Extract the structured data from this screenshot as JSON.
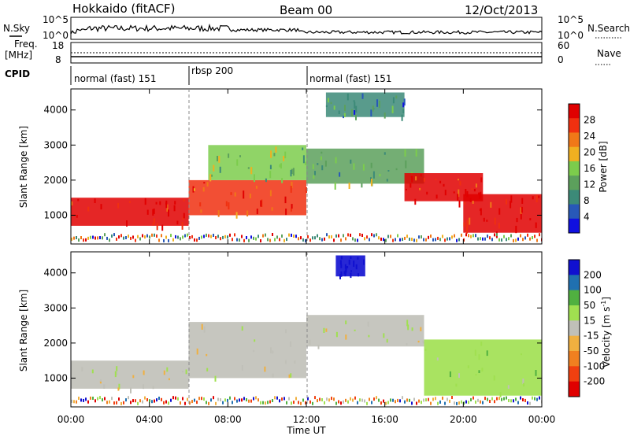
{
  "header": {
    "station": "Hokkaido (fitACF)",
    "beam": "Beam 00",
    "date": "12/Oct/2013"
  },
  "panels": {
    "nsky_label": "N.Sky",
    "nsky_ticks": [
      "10^5",
      "10^0"
    ],
    "nsky_right_ticks": [
      "10^5",
      "10^0"
    ],
    "nsearch_label": "N.Search",
    "freq_label_line1": "Freq.",
    "freq_label_line2": "[MHz]",
    "freq_ticks": [
      "18",
      "8"
    ],
    "nave_ticks": [
      "60",
      "0"
    ],
    "nave_label": "Nave",
    "cpid_label": "CPID"
  },
  "cpid_segments": [
    {
      "name": "normal (fast) 151",
      "start_hour": 0
    },
    {
      "name": "rbsp 200",
      "start_hour": 6
    },
    {
      "name": "normal (fast) 151",
      "start_hour": 12
    }
  ],
  "x_axis": {
    "label": "Time UT",
    "ticks": [
      "00:00",
      "04:00",
      "08:00",
      "12:00",
      "16:00",
      "20:00",
      "00:00"
    ]
  },
  "power_panel": {
    "ylabel": "Slant Range [km]",
    "yticks": [
      "4000",
      "3000",
      "2000",
      "1000"
    ],
    "colorbar_label": "Power [dB]",
    "colorbar_ticks": [
      "28",
      "24",
      "20",
      "16",
      "12",
      "8",
      "4"
    ]
  },
  "velocity_panel": {
    "ylabel": "Slant Range [km]",
    "yticks": [
      "4000",
      "3000",
      "2000",
      "1000"
    ],
    "colorbar_label": "Velocity [m s",
    "colorbar_label_sup": "-1",
    "colorbar_label_end": "]",
    "colorbar_ticks": [
      "200",
      "100",
      "50",
      "15",
      "-15",
      "-50",
      "-100",
      "-200"
    ]
  },
  "chart_data": [
    {
      "type": "heatmap",
      "title": "Power",
      "xlabel": "Time UT",
      "ylabel": "Slant Range [km]",
      "xlim": [
        0,
        24
      ],
      "ylim": [
        180,
        4600
      ],
      "colorbar": {
        "label": "Power [dB]",
        "range": [
          0,
          32
        ],
        "ticks": [
          4,
          8,
          12,
          16,
          20,
          24,
          28
        ]
      },
      "regions": [
        {
          "t0": 0,
          "t1": 6,
          "r0": 700,
          "r1": 1500,
          "value": 30
        },
        {
          "t0": 6,
          "t1": 12,
          "r0": 1000,
          "r1": 2000,
          "value": 26
        },
        {
          "t0": 7,
          "t1": 12,
          "r0": 2000,
          "r1": 3000,
          "value": 15
        },
        {
          "t0": 12,
          "t1": 18,
          "r0": 1900,
          "r1": 2900,
          "value": 13
        },
        {
          "t0": 17,
          "t1": 21,
          "r0": 1400,
          "r1": 2200,
          "value": 30
        },
        {
          "t0": 20,
          "t1": 24,
          "r0": 500,
          "r1": 1600,
          "value": 29
        },
        {
          "t0": 13,
          "t1": 17,
          "r0": 3800,
          "r1": 4500,
          "value": 9
        }
      ]
    },
    {
      "type": "heatmap",
      "title": "Velocity",
      "xlabel": "Time UT",
      "ylabel": "Slant Range [km]",
      "xlim": [
        0,
        24
      ],
      "ylim": [
        180,
        4600
      ],
      "colorbar": {
        "label": "Velocity [m s-1]",
        "levels": [
          -200,
          -100,
          -50,
          -15,
          15,
          50,
          100,
          200
        ]
      },
      "regions": [
        {
          "t0": 0,
          "t1": 6,
          "r0": 700,
          "r1": 1500,
          "value": 0
        },
        {
          "t0": 6,
          "t1": 12,
          "r0": 1000,
          "r1": 2600,
          "value": 0
        },
        {
          "t0": 12,
          "t1": 18,
          "r0": 1900,
          "r1": 2800,
          "value": 5
        },
        {
          "t0": 18,
          "t1": 24,
          "r0": 500,
          "r1": 2100,
          "value": 30
        },
        {
          "t0": 13.5,
          "t1": 15,
          "r0": 3900,
          "r1": 4500,
          "value": 250
        }
      ]
    }
  ],
  "colors": {
    "power_scale": [
      "#1010e0",
      "#2858b8",
      "#3c8a78",
      "#5ca05c",
      "#7ccc4c",
      "#f0b020",
      "#f07818",
      "#f03010",
      "#e00000"
    ],
    "velocity_scale": [
      "#e00000",
      "#f04010",
      "#f08020",
      "#f0b040",
      "#c0c0b8",
      "#a0e050",
      "#50b040",
      "#2070b0",
      "#1010d0"
    ]
  }
}
